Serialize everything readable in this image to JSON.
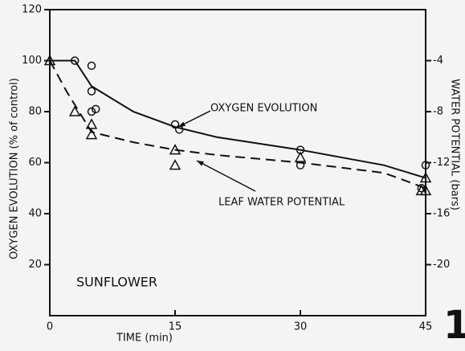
{
  "chart_data": {
    "type": "scatter",
    "xlabel": "TIME (min)",
    "ylabel": "OXYGEN EVOLUTION (% of control)",
    "y2label": "WATER POTENTIAL (bars)",
    "annotation": "SUNFLOWER",
    "figure_label": "1",
    "xlim": [
      0,
      45
    ],
    "xticks": [
      0,
      15,
      30,
      45
    ],
    "ylim": [
      0,
      120
    ],
    "yticks": [
      20,
      40,
      60,
      80,
      100,
      120
    ],
    "y2lim": [
      -24,
      0
    ],
    "y2ticks": [
      -20,
      -16,
      -12,
      -8,
      -4
    ],
    "series": [
      {
        "name": "OXYGEN EVOLUTION",
        "marker": "circle",
        "dashed": false,
        "color": "#111111",
        "x": [
          3,
          5,
          5,
          5,
          5.5,
          15,
          15.5,
          30,
          30,
          45,
          44.5
        ],
        "values": [
          100,
          98,
          88,
          80,
          81,
          75,
          73,
          65,
          59,
          59,
          50
        ],
        "fit_x": [
          0,
          3,
          5,
          10,
          15,
          20,
          30,
          40,
          45
        ],
        "fit_values": [
          100,
          100,
          90,
          80,
          74,
          70,
          65,
          59,
          54
        ]
      },
      {
        "name": "LEAF WATER POTENTIAL",
        "marker": "triangle",
        "dashed": true,
        "axis": "y2",
        "color": "#111111",
        "x": [
          0,
          3,
          5,
          5,
          15,
          15,
          30,
          45,
          44.5,
          45
        ],
        "values": [
          -4,
          -8,
          -9,
          -9.8,
          -11,
          -12.2,
          -11.6,
          -13.2,
          -14.2,
          -14.2
        ],
        "fit_x": [
          0,
          2,
          5,
          10,
          15,
          20,
          30,
          40,
          45
        ],
        "fit_values": [
          -4,
          -6.4,
          -9.6,
          -10.4,
          -11,
          -11.4,
          -12,
          -12.8,
          -14
        ]
      }
    ]
  }
}
